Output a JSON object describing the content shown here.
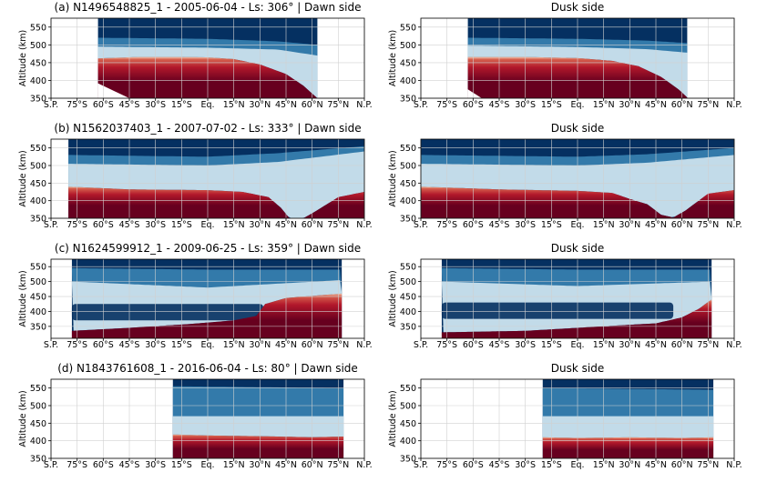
{
  "figure": {
    "ylabel": "Altitude (km)",
    "colormap": "RdBu_r",
    "colors": {
      "low": "#053061",
      "mid": "#f7f7f7",
      "high": "#67001f"
    },
    "xtick_labels": [
      "S.P.",
      "75°S",
      "60°S",
      "45°S",
      "30°S",
      "15°S",
      "Eq.",
      "15°N",
      "30°N",
      "45°N",
      "60°N",
      "75°N",
      "N.P."
    ],
    "xtick_values": [
      -90,
      -75,
      -60,
      -45,
      -30,
      -15,
      0,
      15,
      30,
      45,
      60,
      75,
      90
    ],
    "ytick_labels": [
      "350",
      "400",
      "450",
      "500",
      "550"
    ],
    "ytick_values": [
      350,
      400,
      450,
      500,
      550
    ],
    "xlim": [
      -90,
      90
    ],
    "ylim": [
      350,
      575
    ],
    "grid": true
  },
  "chart_data": [
    {
      "id": "a-dawn",
      "type": "heatmap",
      "title": "(a) N1496548825_1 - 2005-06-04 - Ls: 306° | Dawn side",
      "lat_range": [
        -63,
        63
      ],
      "ylim": [
        350,
        575
      ],
      "ytick_values": [
        350,
        400,
        450,
        500,
        550
      ],
      "levels": [
        {
          "lat": -63,
          "h": 462
        },
        {
          "lat": -40,
          "h": 466
        },
        {
          "lat": -15,
          "h": 466
        },
        {
          "lat": 0,
          "h": 465
        },
        {
          "lat": 15,
          "h": 460
        },
        {
          "lat": 30,
          "h": 445
        },
        {
          "lat": 45,
          "h": 418
        },
        {
          "lat": 55,
          "h": 385
        },
        {
          "lat": 63,
          "h": 350
        }
      ],
      "notch": {
        "lat_start": -63,
        "lat_end": -45,
        "h_start": 392,
        "h_end": 350
      },
      "blue_band": [
        {
          "lat": -63,
          "h": 520
        },
        {
          "lat": 0,
          "h": 517
        },
        {
          "lat": 40,
          "h": 510
        },
        {
          "lat": 63,
          "h": 500
        }
      ],
      "light_band": [
        {
          "lat": -63,
          "h": 495
        },
        {
          "lat": 0,
          "h": 492
        },
        {
          "lat": 40,
          "h": 487
        },
        {
          "lat": 63,
          "h": 470
        }
      ]
    },
    {
      "id": "a-dusk",
      "type": "heatmap",
      "title": "Dusk side",
      "lat_range": [
        -63,
        63
      ],
      "ylim": [
        350,
        575
      ],
      "ytick_values": [
        350,
        400,
        450,
        500,
        550
      ],
      "levels": [
        {
          "lat": -63,
          "h": 466
        },
        {
          "lat": -30,
          "h": 466
        },
        {
          "lat": 0,
          "h": 463
        },
        {
          "lat": 20,
          "h": 455
        },
        {
          "lat": 35,
          "h": 440
        },
        {
          "lat": 48,
          "h": 410
        },
        {
          "lat": 58,
          "h": 375
        },
        {
          "lat": 63,
          "h": 352
        }
      ],
      "notch": {
        "lat_start": -63,
        "lat_end": -55,
        "h_start": 375,
        "h_end": 350
      },
      "blue_band": [
        {
          "lat": -63,
          "h": 520
        },
        {
          "lat": 0,
          "h": 517
        },
        {
          "lat": 40,
          "h": 512
        },
        {
          "lat": 63,
          "h": 505
        }
      ],
      "light_band": [
        {
          "lat": -63,
          "h": 498
        },
        {
          "lat": 0,
          "h": 494
        },
        {
          "lat": 40,
          "h": 488
        },
        {
          "lat": 63,
          "h": 478
        }
      ]
    },
    {
      "id": "b-dawn",
      "type": "heatmap",
      "title": "(b) N1562037403_1 - 2007-07-02 - Ls: 333° | Dawn side",
      "lat_range": [
        -80,
        90
      ],
      "ylim": [
        350,
        575
      ],
      "ytick_values": [
        350,
        400,
        450,
        500,
        550
      ],
      "levels": [
        {
          "lat": -80,
          "h": 440
        },
        {
          "lat": -45,
          "h": 432
        },
        {
          "lat": 0,
          "h": 430
        },
        {
          "lat": 20,
          "h": 425
        },
        {
          "lat": 35,
          "h": 410
        },
        {
          "lat": 42,
          "h": 380
        },
        {
          "lat": 47,
          "h": 350
        },
        {
          "lat": 55,
          "h": 350
        },
        {
          "lat": 62,
          "h": 370
        },
        {
          "lat": 75,
          "h": 410
        },
        {
          "lat": 90,
          "h": 425
        }
      ],
      "blue_band": [
        {
          "lat": -80,
          "h": 530
        },
        {
          "lat": 0,
          "h": 525
        },
        {
          "lat": 40,
          "h": 535
        },
        {
          "lat": 90,
          "h": 555
        }
      ],
      "light_band": [
        {
          "lat": -80,
          "h": 505
        },
        {
          "lat": 0,
          "h": 500
        },
        {
          "lat": 40,
          "h": 510
        },
        {
          "lat": 90,
          "h": 540
        }
      ]
    },
    {
      "id": "b-dusk",
      "type": "heatmap",
      "title": "Dusk side",
      "lat_range": [
        -90,
        90
      ],
      "ylim": [
        350,
        575
      ],
      "ytick_values": [
        350,
        400,
        450,
        500,
        550
      ],
      "levels": [
        {
          "lat": -90,
          "h": 440
        },
        {
          "lat": -45,
          "h": 432
        },
        {
          "lat": 0,
          "h": 428
        },
        {
          "lat": 20,
          "h": 422
        },
        {
          "lat": 30,
          "h": 405
        },
        {
          "lat": 40,
          "h": 390
        },
        {
          "lat": 48,
          "h": 360
        },
        {
          "lat": 55,
          "h": 352
        },
        {
          "lat": 62,
          "h": 372
        },
        {
          "lat": 75,
          "h": 420
        },
        {
          "lat": 90,
          "h": 430
        }
      ],
      "blue_band": [
        {
          "lat": -90,
          "h": 530
        },
        {
          "lat": 0,
          "h": 525
        },
        {
          "lat": 40,
          "h": 532
        },
        {
          "lat": 90,
          "h": 550
        }
      ],
      "light_band": [
        {
          "lat": -90,
          "h": 505
        },
        {
          "lat": 0,
          "h": 500
        },
        {
          "lat": 40,
          "h": 508
        },
        {
          "lat": 90,
          "h": 530
        }
      ]
    },
    {
      "id": "c-dawn",
      "type": "heatmap",
      "title": "(c) N1624599912_1 - 2009-06-25 - Ls: 359° | Dawn side",
      "lat_range": [
        -78,
        77
      ],
      "ylim": [
        310,
        575
      ],
      "ytick_values": [
        350,
        400,
        450,
        500,
        550
      ],
      "levels": [
        {
          "lat": -78,
          "h": 335
        },
        {
          "lat": -45,
          "h": 345
        },
        {
          "lat": -10,
          "h": 358
        },
        {
          "lat": 15,
          "h": 370
        },
        {
          "lat": 28,
          "h": 385
        },
        {
          "lat": 33,
          "h": 425
        },
        {
          "lat": 45,
          "h": 445
        },
        {
          "lat": 77,
          "h": 460
        }
      ],
      "blue_band": [
        {
          "lat": -78,
          "h": 545
        },
        {
          "lat": 0,
          "h": 540
        },
        {
          "lat": 77,
          "h": 540
        }
      ],
      "light_band": [
        {
          "lat": -78,
          "h": 500
        },
        {
          "lat": 0,
          "h": 480
        },
        {
          "lat": 77,
          "h": 505
        }
      ],
      "dark_blob": {
        "lat_start": -78,
        "lat_end": 32,
        "h_low": 370,
        "h_high": 425
      }
    },
    {
      "id": "c-dusk",
      "type": "heatmap",
      "title": "Dusk side",
      "lat_range": [
        -78,
        77
      ],
      "ylim": [
        310,
        575
      ],
      "ytick_values": [
        350,
        400,
        450,
        500,
        550
      ],
      "levels": [
        {
          "lat": -78,
          "h": 330
        },
        {
          "lat": -30,
          "h": 335
        },
        {
          "lat": 0,
          "h": 345
        },
        {
          "lat": 20,
          "h": 352
        },
        {
          "lat": 45,
          "h": 360
        },
        {
          "lat": 60,
          "h": 380
        },
        {
          "lat": 70,
          "h": 410
        },
        {
          "lat": 77,
          "h": 440
        }
      ],
      "blue_band": [
        {
          "lat": -78,
          "h": 545
        },
        {
          "lat": 0,
          "h": 540
        },
        {
          "lat": 77,
          "h": 540
        }
      ],
      "light_band": [
        {
          "lat": -78,
          "h": 500
        },
        {
          "lat": 0,
          "h": 485
        },
        {
          "lat": 77,
          "h": 500
        }
      ],
      "dark_blob": {
        "lat_start": -78,
        "lat_end": 55,
        "h_low": 375,
        "h_high": 430
      }
    },
    {
      "id": "d-dawn",
      "type": "heatmap",
      "title": "(d) N1843761608_1 - 2016-06-04 - Ls: 80° | Dawn side",
      "lat_range": [
        -20,
        78
      ],
      "ylim": [
        350,
        575
      ],
      "ytick_values": [
        350,
        400,
        450,
        500,
        550
      ],
      "levels": [
        {
          "lat": -20,
          "h": 418
        },
        {
          "lat": 0,
          "h": 415
        },
        {
          "lat": 30,
          "h": 413
        },
        {
          "lat": 60,
          "h": 410
        },
        {
          "lat": 78,
          "h": 412
        }
      ],
      "blue_band": [
        {
          "lat": -20,
          "h": 555
        },
        {
          "lat": 78,
          "h": 550
        }
      ],
      "light_band": [
        {
          "lat": -20,
          "h": 470
        },
        {
          "lat": 78,
          "h": 470
        }
      ]
    },
    {
      "id": "d-dusk",
      "type": "heatmap",
      "title": "Dusk side",
      "lat_range": [
        -20,
        78
      ],
      "ylim": [
        350,
        575
      ],
      "ytick_values": [
        350,
        400,
        450,
        500,
        550
      ],
      "levels": [
        {
          "lat": -20,
          "h": 410
        },
        {
          "lat": 0,
          "h": 408
        },
        {
          "lat": 30,
          "h": 410
        },
        {
          "lat": 60,
          "h": 408
        },
        {
          "lat": 78,
          "h": 410
        }
      ],
      "blue_band": [
        {
          "lat": -20,
          "h": 550
        },
        {
          "lat": 78,
          "h": 545
        }
      ],
      "light_band": [
        {
          "lat": -20,
          "h": 470
        },
        {
          "lat": 78,
          "h": 470
        }
      ]
    }
  ]
}
